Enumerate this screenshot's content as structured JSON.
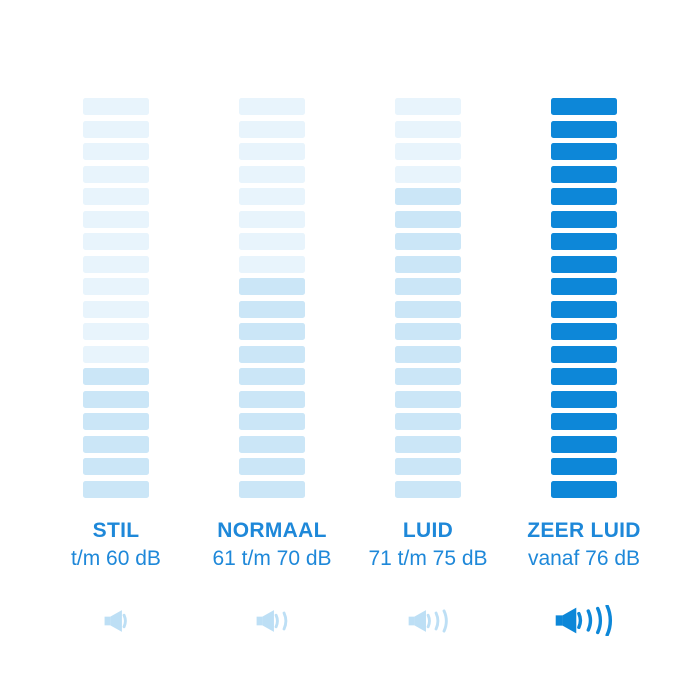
{
  "page": {
    "background": "#ffffff"
  },
  "chart_data": {
    "type": "bar",
    "subtype": "stacked-level-indicator",
    "title": "",
    "bars_per_column": 18,
    "legend_position": "none",
    "grid": false,
    "colors": {
      "light": "#e8f4fc",
      "medium": "#cbe6f7",
      "full": "#0d87d8",
      "icon_light": "#bddff5",
      "text": "#1e88d9"
    },
    "columns": [
      {
        "label": "STIL",
        "range": "t/m 60 dB",
        "light_bars": 12,
        "medium_bars": 6,
        "full_bars": 0,
        "sound_waves": 1,
        "icon": "speaker-1-wave-icon"
      },
      {
        "label": "NORMAAL",
        "range": "61 t/m 70 dB",
        "light_bars": 8,
        "medium_bars": 10,
        "full_bars": 0,
        "sound_waves": 2,
        "icon": "speaker-2-waves-icon"
      },
      {
        "label": "LUID",
        "range": "71 t/m 75 dB",
        "light_bars": 4,
        "medium_bars": 14,
        "full_bars": 0,
        "sound_waves": 3,
        "icon": "speaker-3-waves-icon"
      },
      {
        "label": "ZEER LUID",
        "range": "vanaf 76 dB",
        "light_bars": 0,
        "medium_bars": 0,
        "full_bars": 18,
        "sound_waves": 4,
        "icon": "speaker-4-waves-icon"
      }
    ]
  }
}
